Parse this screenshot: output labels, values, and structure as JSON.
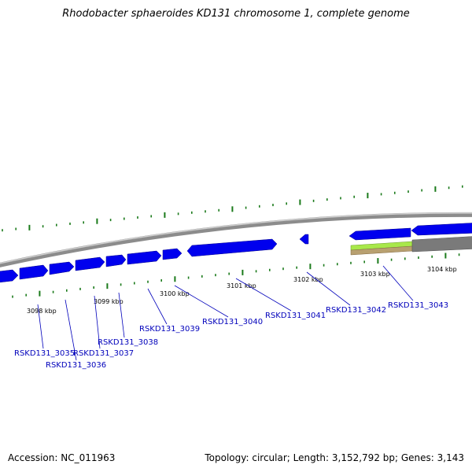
{
  "title": "Rhodobacter sphaeroides KD131 chromosome 1, complete genome",
  "footer": {
    "accession": "Accession: NC_011963",
    "topology": "Topology: circular; Length: 3,152,792 bp; Genes: 3,143"
  },
  "colors": {
    "gene_forward": "#0000ee",
    "gene_outline": "#00008b",
    "backbone": "#8c8c8c",
    "backbone_highlight": "#cfcfcf",
    "tick": "#1a7a1a",
    "label": "#0000bb",
    "feature_green": "#a8e84a",
    "feature_tan": "#b8a070",
    "feature_gray": "#7a7a7a"
  },
  "ticks": [
    {
      "label": "3098 kbp"
    },
    {
      "label": "3099 kbp"
    },
    {
      "label": "3100 kbp"
    },
    {
      "label": "3101 kbp"
    },
    {
      "label": "3102 kbp"
    },
    {
      "label": "3103 kbp"
    },
    {
      "label": "3104 kbp"
    }
  ],
  "genes": [
    {
      "label": "RSKD131_3035"
    },
    {
      "label": "RSKD131_3036"
    },
    {
      "label": "RSKD131_3037"
    },
    {
      "label": "RSKD131_3038"
    },
    {
      "label": "RSKD131_3039"
    },
    {
      "label": "RSKD131_3040"
    },
    {
      "label": "RSKD131_3041"
    },
    {
      "label": "RSKD131_3042"
    },
    {
      "label": "RSKD131_3043"
    }
  ]
}
